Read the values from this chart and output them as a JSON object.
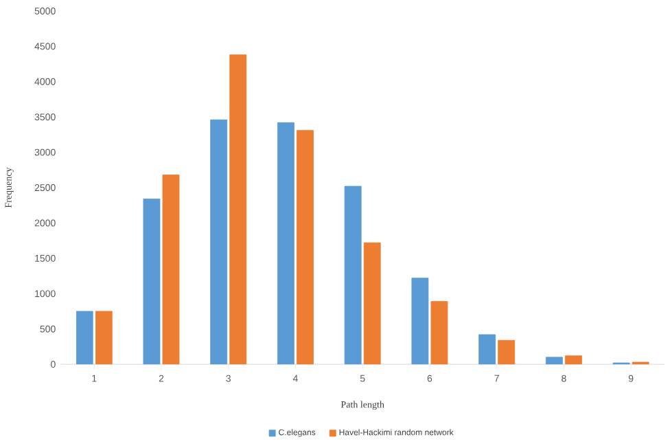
{
  "chart_data": {
    "type": "bar",
    "xlabel": "Path length",
    "ylabel": "Frequency",
    "categories": [
      "1",
      "2",
      "3",
      "4",
      "5",
      "6",
      "7",
      "8",
      "9"
    ],
    "series": [
      {
        "name": "C.elegans",
        "color": "#5b9bd5",
        "values": [
          750,
          2340,
          3460,
          3420,
          2520,
          1220,
          420,
          100,
          20
        ]
      },
      {
        "name": "Havel-Hackimi random network",
        "color": "#ed7d31",
        "values": [
          750,
          2680,
          4380,
          3310,
          1720,
          890,
          340,
          120,
          30
        ]
      }
    ],
    "ylim": [
      0,
      5000
    ],
    "yticks": [
      0,
      500,
      1000,
      1500,
      2000,
      2500,
      3000,
      3500,
      4000,
      4500,
      5000
    ],
    "grid": false,
    "legend": "bottom"
  }
}
